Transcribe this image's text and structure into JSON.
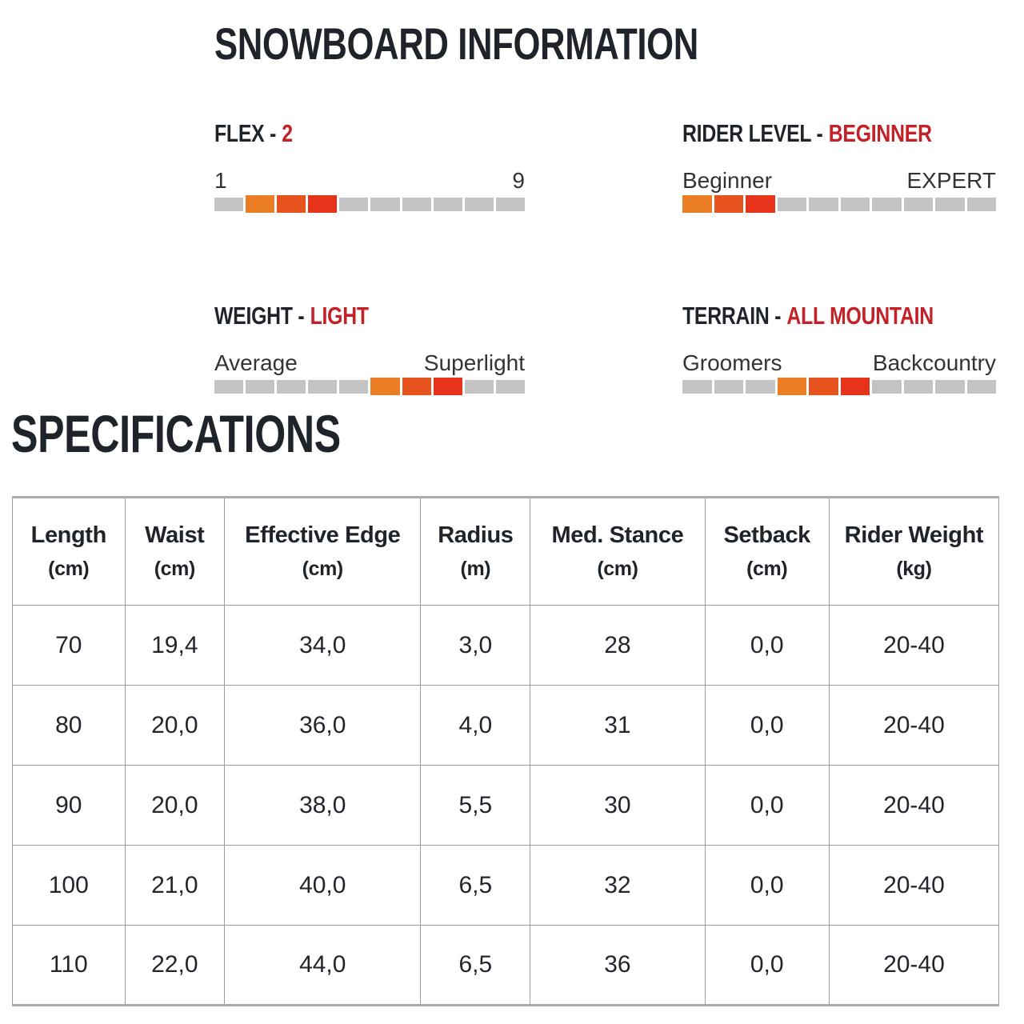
{
  "headings": {
    "info": "SNOWBOARD INFORMATION",
    "specs": "SPECIFICATIONS"
  },
  "colors": {
    "heading_dark": "#1F242B",
    "accent_red": "#C32127",
    "bar_orange": "#EB7D24",
    "bar_redorange": "#E6531E",
    "bar_red": "#E7331A",
    "bar_gray": "#C3C3C3",
    "border_gray": "#9B9B9B"
  },
  "metrics": [
    {
      "label": "FLEX -",
      "value": "2",
      "min": "1",
      "max": "9",
      "segments": [
        "gray",
        "orange",
        "redorange",
        "red",
        "gray",
        "gray",
        "gray",
        "gray",
        "gray",
        "gray"
      ]
    },
    {
      "label": "RIDER LEVEL -",
      "value": "BEGINNER",
      "min": "Beginner",
      "max": "EXPERT",
      "segments": [
        "orange",
        "redorange",
        "red",
        "gray",
        "gray",
        "gray",
        "gray",
        "gray",
        "gray",
        "gray"
      ]
    },
    {
      "label": "WEIGHT -",
      "value": "LIGHT",
      "min": "Average",
      "max": "Superlight",
      "segments": [
        "gray",
        "gray",
        "gray",
        "gray",
        "gray",
        "orange",
        "redorange",
        "red",
        "gray",
        "gray"
      ]
    },
    {
      "label": "TERRAIN -",
      "value": "ALL MOUNTAIN",
      "min": "Groomers",
      "max": "Backcountry",
      "segments": [
        "gray",
        "gray",
        "gray",
        "orange",
        "redorange",
        "red",
        "gray",
        "gray",
        "gray",
        "gray"
      ]
    }
  ],
  "table": {
    "columns": [
      {
        "name": "Length",
        "unit": "(cm)"
      },
      {
        "name": "Waist",
        "unit": "(cm)"
      },
      {
        "name": "Effective Edge",
        "unit": "(cm)"
      },
      {
        "name": "Radius",
        "unit": "(m)"
      },
      {
        "name": "Med. Stance",
        "unit": "(cm)"
      },
      {
        "name": "Setback",
        "unit": "(cm)"
      },
      {
        "name": "Rider Weight",
        "unit": "(kg)"
      }
    ],
    "rows": [
      [
        "70",
        "19,4",
        "34,0",
        "3,0",
        "28",
        "0,0",
        "20-40"
      ],
      [
        "80",
        "20,0",
        "36,0",
        "4,0",
        "31",
        "0,0",
        "20-40"
      ],
      [
        "90",
        "20,0",
        "38,0",
        "5,5",
        "30",
        "0,0",
        "20-40"
      ],
      [
        "100",
        "21,0",
        "40,0",
        "6,5",
        "32",
        "0,0",
        "20-40"
      ],
      [
        "110",
        "22,0",
        "44,0",
        "6,5",
        "36",
        "0,0",
        "20-40"
      ]
    ]
  }
}
